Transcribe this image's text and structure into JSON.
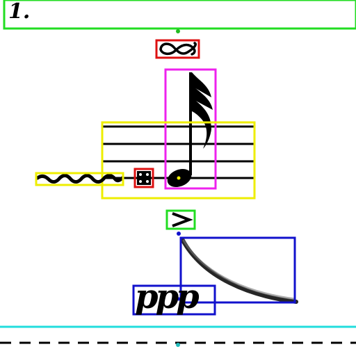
{
  "measure": {
    "number": "1."
  },
  "dynamics": {
    "text": "ppp"
  },
  "symbols": {
    "turn": "turn-ornament",
    "trill": "trill-wavy-line",
    "accidental": "double-sharp",
    "note": "sixteenth-note-with-flags",
    "accent": "accent-marcato",
    "slur": "phrase-curve"
  },
  "colors": {
    "measure_box": "#22dd22",
    "turn_box": "#dd1111",
    "note_box": "#ee22ee",
    "staff_box": "#eeee00",
    "trill_box": "#eeee00",
    "accidental_box": "#dd1111",
    "accent_box": "#22dd22",
    "slur_box": "#1111cc",
    "dynamics_box": "#1111cc",
    "system_line": "#22dddd",
    "anchor_green": "#22bb22",
    "anchor_blue": "#1111cc",
    "anchor_cyan": "#22bbbb"
  }
}
